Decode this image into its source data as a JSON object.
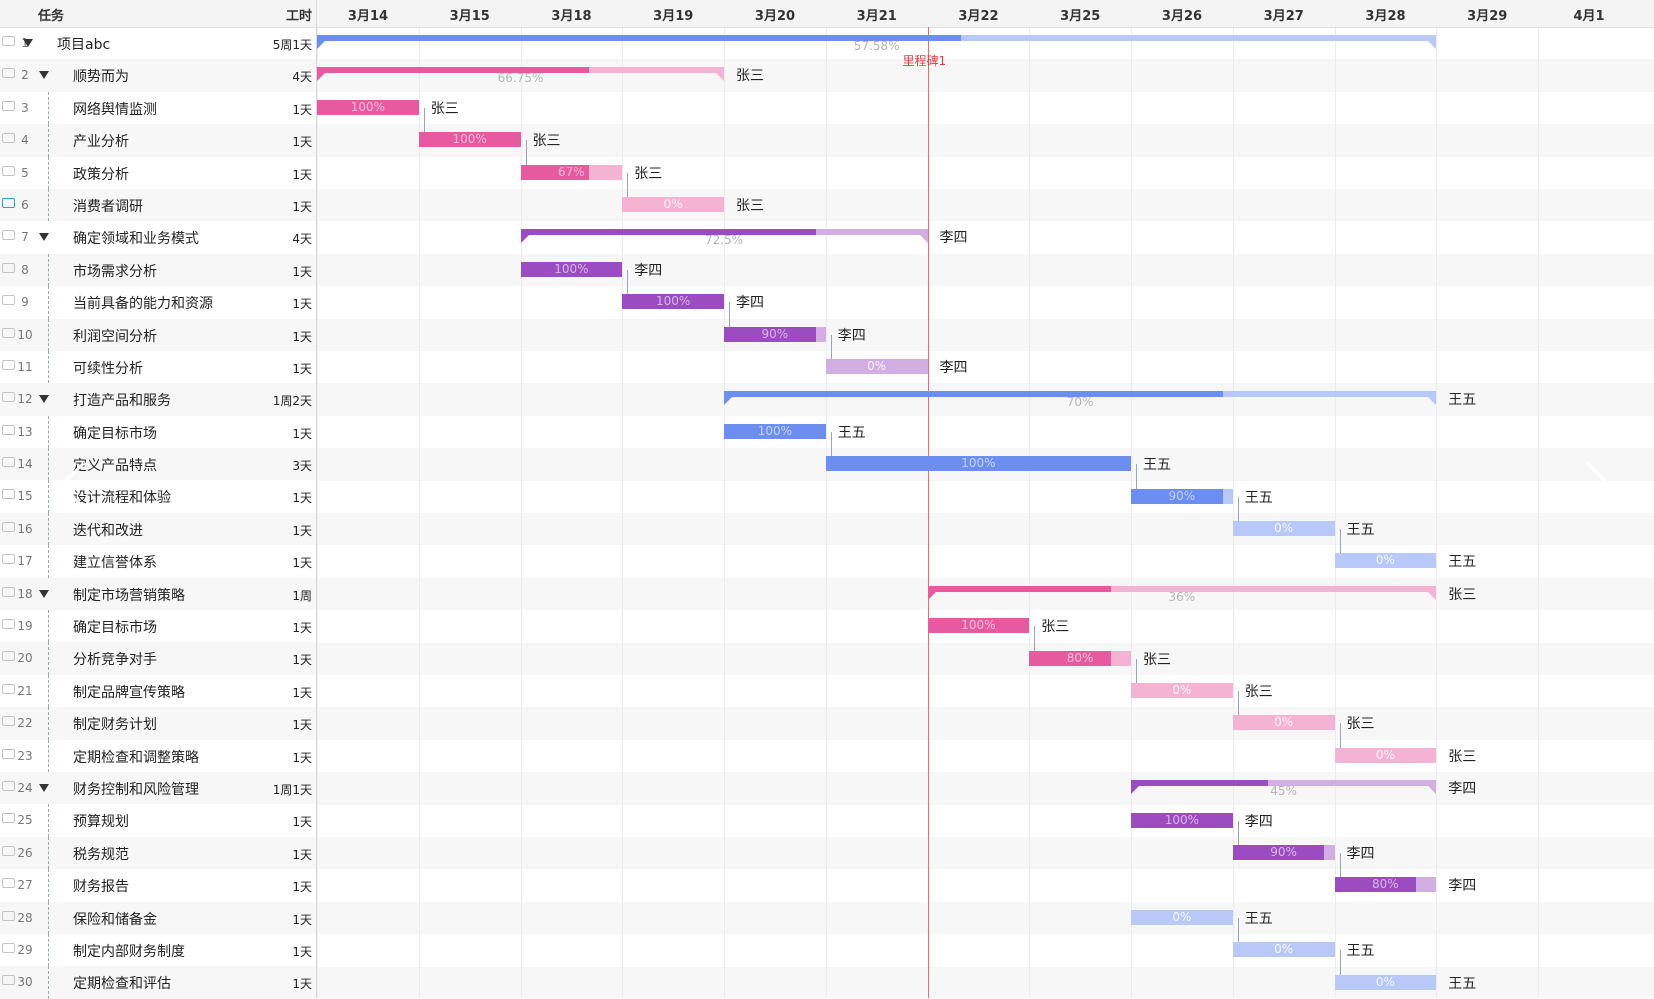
{
  "header": {
    "task_col": "任务",
    "work_col": "工时"
  },
  "dates": [
    "3月14",
    "3月15",
    "3月18",
    "3月19",
    "3月20",
    "3月21",
    "3月22",
    "3月25",
    "3月26",
    "3月27",
    "3月28",
    "3月29",
    "4月1"
  ],
  "milestone": {
    "label": "里程碑1",
    "day_index": 6
  },
  "colors": {
    "blue": {
      "fill": "#6b8ef0",
      "light": "#b8c8f7"
    },
    "pink": {
      "fill": "#e85aa0",
      "light": "#f4b3d3"
    },
    "purple": {
      "fill": "#9a4cc0",
      "light": "#d2aee3"
    },
    "today": "#ef6a6a",
    "milestone_text": "#e23c3c"
  },
  "tasks": [
    {
      "id": "1",
      "name": "项目abc",
      "duration": "5周1天",
      "level": 0,
      "parent": true,
      "start": 0,
      "end": 11,
      "progress": 0.5758,
      "pct_label": "57.58%",
      "color": "blue",
      "owner": "",
      "comment": false
    },
    {
      "id": "2",
      "name": "顺势而为",
      "duration": "4天",
      "level": 1,
      "parent": true,
      "start": 0,
      "end": 4,
      "progress": 0.6675,
      "pct_label": "66.75%",
      "color": "pink",
      "owner": "张三",
      "comment": false
    },
    {
      "id": "3",
      "name": "网络舆情监测",
      "duration": "1天",
      "level": 2,
      "parent": false,
      "start": 0,
      "end": 1,
      "progress": 1.0,
      "pct_label": "100%",
      "color": "pink",
      "owner": "张三",
      "link": true,
      "comment": false
    },
    {
      "id": "4",
      "name": "产业分析",
      "duration": "1天",
      "level": 2,
      "parent": false,
      "start": 1,
      "end": 2,
      "progress": 1.0,
      "pct_label": "100%",
      "color": "pink",
      "owner": "张三",
      "link": true,
      "comment": false
    },
    {
      "id": "5",
      "name": "政策分析",
      "duration": "1天",
      "level": 2,
      "parent": false,
      "start": 2,
      "end": 3,
      "progress": 0.67,
      "pct_label": "67%",
      "color": "pink",
      "owner": "张三",
      "link": true,
      "comment": false
    },
    {
      "id": "6",
      "name": "消费者调研",
      "duration": "1天",
      "level": 2,
      "parent": false,
      "start": 3,
      "end": 4,
      "progress": 0,
      "pct_label": "0%",
      "color": "pink",
      "owner": "张三",
      "comment": true
    },
    {
      "id": "7",
      "name": "确定领域和业务模式",
      "duration": "4天",
      "level": 1,
      "parent": true,
      "start": 2,
      "end": 6,
      "progress": 0.725,
      "pct_label": "72.5%",
      "color": "purple",
      "owner": "李四",
      "comment": false
    },
    {
      "id": "8",
      "name": "市场需求分析",
      "duration": "1天",
      "level": 2,
      "parent": false,
      "start": 2,
      "end": 3,
      "progress": 1.0,
      "pct_label": "100%",
      "color": "purple",
      "owner": "李四",
      "link": true,
      "comment": false
    },
    {
      "id": "9",
      "name": "当前具备的能力和资源",
      "duration": "1天",
      "level": 2,
      "parent": false,
      "start": 3,
      "end": 4,
      "progress": 1.0,
      "pct_label": "100%",
      "color": "purple",
      "owner": "李四",
      "link": true,
      "comment": false
    },
    {
      "id": "10",
      "name": "利润空间分析",
      "duration": "1天",
      "level": 2,
      "parent": false,
      "start": 4,
      "end": 5,
      "progress": 0.9,
      "pct_label": "90%",
      "color": "purple",
      "owner": "李四",
      "link": true,
      "comment": false
    },
    {
      "id": "11",
      "name": "可续性分析",
      "duration": "1天",
      "level": 2,
      "parent": false,
      "start": 5,
      "end": 6,
      "progress": 0,
      "pct_label": "0%",
      "color": "purple",
      "owner": "李四",
      "comment": false
    },
    {
      "id": "12",
      "name": "打造产品和服务",
      "duration": "1周2天",
      "level": 1,
      "parent": true,
      "start": 4,
      "end": 11,
      "progress": 0.7,
      "pct_label": "70%",
      "color": "blue",
      "owner": "王五",
      "comment": false
    },
    {
      "id": "13",
      "name": "确定目标市场",
      "duration": "1天",
      "level": 2,
      "parent": false,
      "start": 4,
      "end": 5,
      "progress": 1.0,
      "pct_label": "100%",
      "color": "blue",
      "owner": "王五",
      "link": true,
      "comment": false
    },
    {
      "id": "14",
      "name": "定义产品特点",
      "duration": "3天",
      "level": 2,
      "parent": false,
      "start": 5,
      "end": 8,
      "progress": 1.0,
      "pct_label": "100%",
      "color": "blue",
      "owner": "王五",
      "link": true,
      "comment": false
    },
    {
      "id": "15",
      "name": "设计流程和体验",
      "duration": "1天",
      "level": 2,
      "parent": false,
      "start": 8,
      "end": 9,
      "progress": 0.9,
      "pct_label": "90%",
      "color": "blue",
      "owner": "王五",
      "link": true,
      "comment": false
    },
    {
      "id": "16",
      "name": "迭代和改进",
      "duration": "1天",
      "level": 2,
      "parent": false,
      "start": 9,
      "end": 10,
      "progress": 0,
      "pct_label": "0%",
      "color": "blue",
      "owner": "王五",
      "link": true,
      "comment": false
    },
    {
      "id": "17",
      "name": "建立信誉体系",
      "duration": "1天",
      "level": 2,
      "parent": false,
      "start": 10,
      "end": 11,
      "progress": 0,
      "pct_label": "0%",
      "color": "blue",
      "owner": "王五",
      "comment": false
    },
    {
      "id": "18",
      "name": "制定市场营销策略",
      "duration": "1周",
      "level": 1,
      "parent": true,
      "start": 6,
      "end": 11,
      "progress": 0.36,
      "pct_label": "36%",
      "color": "pink",
      "owner": "张三",
      "comment": false
    },
    {
      "id": "19",
      "name": "确定目标市场",
      "duration": "1天",
      "level": 2,
      "parent": false,
      "start": 6,
      "end": 7,
      "progress": 1.0,
      "pct_label": "100%",
      "color": "pink",
      "owner": "张三",
      "link": true,
      "comment": false
    },
    {
      "id": "20",
      "name": "分析竞争对手",
      "duration": "1天",
      "level": 2,
      "parent": false,
      "start": 7,
      "end": 8,
      "progress": 0.8,
      "pct_label": "80%",
      "color": "pink",
      "owner": "张三",
      "link": true,
      "comment": false
    },
    {
      "id": "21",
      "name": "制定品牌宣传策略",
      "duration": "1天",
      "level": 2,
      "parent": false,
      "start": 8,
      "end": 9,
      "progress": 0,
      "pct_label": "0%",
      "color": "pink",
      "owner": "张三",
      "link": true,
      "comment": false
    },
    {
      "id": "22",
      "name": "制定财务计划",
      "duration": "1天",
      "level": 2,
      "parent": false,
      "start": 9,
      "end": 10,
      "progress": 0,
      "pct_label": "0%",
      "color": "pink",
      "owner": "张三",
      "link": true,
      "comment": false
    },
    {
      "id": "23",
      "name": "定期检查和调整策略",
      "duration": "1天",
      "level": 2,
      "parent": false,
      "start": 10,
      "end": 11,
      "progress": 0,
      "pct_label": "0%",
      "color": "pink",
      "owner": "张三",
      "comment": false
    },
    {
      "id": "24",
      "name": "财务控制和风险管理",
      "duration": "1周1天",
      "level": 1,
      "parent": true,
      "start": 8,
      "end": 11,
      "progress": 0.45,
      "pct_label": "45%",
      "color": "purple",
      "owner": "李四",
      "comment": false
    },
    {
      "id": "25",
      "name": "预算规划",
      "duration": "1天",
      "level": 2,
      "parent": false,
      "start": 8,
      "end": 9,
      "progress": 1.0,
      "pct_label": "100%",
      "color": "purple",
      "owner": "李四",
      "link": true,
      "comment": false
    },
    {
      "id": "26",
      "name": "税务规范",
      "duration": "1天",
      "level": 2,
      "parent": false,
      "start": 9,
      "end": 10,
      "progress": 0.9,
      "pct_label": "90%",
      "color": "purple",
      "owner": "李四",
      "link": true,
      "comment": false
    },
    {
      "id": "27",
      "name": "财务报告",
      "duration": "1天",
      "level": 2,
      "parent": false,
      "start": 10,
      "end": 11,
      "progress": 0.8,
      "pct_label": "80%",
      "color": "purple",
      "owner": "李四",
      "comment": false
    },
    {
      "id": "28",
      "name": "保险和储备金",
      "duration": "1天",
      "level": 2,
      "parent": false,
      "start": 8,
      "end": 9,
      "progress": 0,
      "pct_label": "0%",
      "color": "blue",
      "owner": "王五",
      "link": true,
      "comment": false
    },
    {
      "id": "29",
      "name": "制定内部财务制度",
      "duration": "1天",
      "level": 2,
      "parent": false,
      "start": 9,
      "end": 10,
      "progress": 0,
      "pct_label": "0%",
      "color": "blue",
      "owner": "王五",
      "link": true,
      "comment": false
    },
    {
      "id": "30",
      "name": "定期检查和评估",
      "duration": "1天",
      "level": 2,
      "parent": false,
      "start": 10,
      "end": 11,
      "progress": 0,
      "pct_label": "0%",
      "color": "blue",
      "owner": "王五",
      "comment": false
    }
  ]
}
